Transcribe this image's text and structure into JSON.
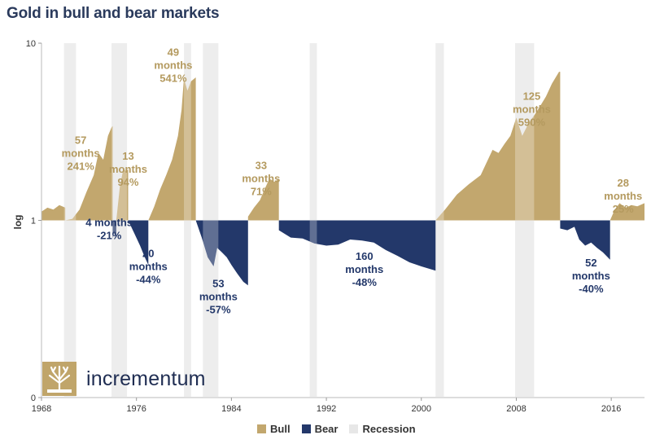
{
  "title": "Gold in bull and bear markets",
  "logo_text": "incrementum",
  "colors": {
    "bull": "#c2a76e",
    "bear": "#23386a",
    "recession": "#e7e7e7",
    "text_bull": "#b49a5f",
    "text_bear": "#23386a"
  },
  "legend": [
    {
      "label": "Bull",
      "color_key": "bull"
    },
    {
      "label": "Bear",
      "color_key": "bear"
    },
    {
      "label": "Recession",
      "color_key": "recession"
    }
  ],
  "chart_data": {
    "type": "area",
    "title": "Gold in bull and bear markets",
    "ylabel": "log",
    "yscale": "log",
    "ylim": [
      0.1,
      10
    ],
    "y_ticks": [
      {
        "value": 10,
        "label": "10"
      },
      {
        "value": 1,
        "label": "1"
      },
      {
        "value": 0.1,
        "label": "0"
      }
    ],
    "xlim": [
      1968,
      2018.8
    ],
    "x_ticks": [
      1968,
      1976,
      1984,
      1992,
      2000,
      2008,
      2016
    ],
    "baseline": 1,
    "recessions": [
      [
        1969.9,
        1970.9
      ],
      [
        1973.9,
        1975.2
      ],
      [
        1980.0,
        1980.6
      ],
      [
        1981.6,
        1982.9
      ],
      [
        1990.6,
        1991.2
      ],
      [
        2001.2,
        2001.9
      ],
      [
        2007.9,
        2009.5
      ]
    ],
    "series": [
      {
        "name": "Bull",
        "kind": "bull",
        "x": [
          1968.0,
          1968.5,
          1969.0,
          1969.5,
          1970.0
        ],
        "y": [
          1.12,
          1.18,
          1.15,
          1.22,
          1.18
        ]
      },
      {
        "name": "Bull",
        "kind": "bull",
        "x": [
          1970.0,
          1970.6,
          1971.2,
          1971.8,
          1972.4,
          1972.8,
          1973.2,
          1973.6,
          1973.9,
          1974.0
        ],
        "y": [
          1.0,
          1.02,
          1.15,
          1.45,
          1.8,
          2.4,
          2.2,
          3.0,
          3.35,
          3.41
        ]
      },
      {
        "name": "Bear",
        "kind": "bear",
        "x": [
          1974.0,
          1974.1,
          1974.2,
          1974.3
        ],
        "y": [
          0.79,
          0.85,
          0.82,
          0.8
        ]
      },
      {
        "name": "Bull",
        "kind": "bull",
        "x": [
          1974.3,
          1974.6,
          1974.9,
          1975.1,
          1975.3
        ],
        "y": [
          1.0,
          1.55,
          1.95,
          1.9,
          1.94
        ]
      },
      {
        "name": "Bear",
        "kind": "bear",
        "x": [
          1975.3,
          1975.8,
          1976.3,
          1976.7,
          1977.0
        ],
        "y": [
          1.0,
          0.85,
          0.72,
          0.62,
          0.56
        ]
      },
      {
        "name": "Bull",
        "kind": "bull",
        "x": [
          1977.0,
          1977.5,
          1978.0,
          1978.5,
          1979.0,
          1979.5,
          1979.8,
          1980.0,
          1980.3,
          1980.6,
          1981.0
        ],
        "y": [
          1.0,
          1.2,
          1.5,
          1.8,
          2.2,
          3.0,
          4.2,
          6.3,
          5.4,
          6.1,
          6.41
        ]
      },
      {
        "name": "Bear",
        "kind": "bear",
        "x": [
          1981.0,
          1981.5,
          1982.0,
          1982.5,
          1982.8,
          1983.2,
          1983.6,
          1984.0,
          1984.5,
          1985.0,
          1985.4
        ],
        "y": [
          1.0,
          0.8,
          0.62,
          0.55,
          0.7,
          0.66,
          0.62,
          0.56,
          0.5,
          0.45,
          0.43
        ]
      },
      {
        "name": "Bull",
        "kind": "bull",
        "x": [
          1985.4,
          1985.9,
          1986.4,
          1986.8,
          1987.2,
          1987.6,
          1988.0
        ],
        "y": [
          1.05,
          1.18,
          1.3,
          1.5,
          1.72,
          1.65,
          1.71
        ]
      },
      {
        "name": "Bear",
        "kind": "bear",
        "x": [
          1988.0,
          1989.0,
          1990.0,
          1991.0,
          1992.0,
          1993.0,
          1994.0,
          1995.0,
          1996.0,
          1997.0,
          1998.0,
          1999.0,
          2000.0,
          2001.2
        ],
        "y": [
          0.88,
          0.8,
          0.79,
          0.74,
          0.72,
          0.73,
          0.78,
          0.77,
          0.75,
          0.68,
          0.63,
          0.58,
          0.55,
          0.52
        ]
      },
      {
        "name": "Bull",
        "kind": "bull",
        "x": [
          2001.2,
          2002.0,
          2003.0,
          2004.0,
          2005.0,
          2006.0,
          2006.5,
          2007.0,
          2007.5,
          2008.0,
          2008.5,
          2009.0,
          2009.5,
          2010.0,
          2010.5,
          2011.0,
          2011.6,
          2011.7
        ],
        "y": [
          1.0,
          1.15,
          1.4,
          1.6,
          1.8,
          2.5,
          2.4,
          2.7,
          3.0,
          3.8,
          3.0,
          3.5,
          3.9,
          4.4,
          5.0,
          5.9,
          6.9,
          6.9
        ]
      },
      {
        "name": "Bear",
        "kind": "bear",
        "x": [
          2011.7,
          2012.3,
          2012.9,
          2013.3,
          2013.8,
          2014.3,
          2014.8,
          2015.3,
          2015.9
        ],
        "y": [
          0.9,
          0.88,
          0.92,
          0.78,
          0.72,
          0.75,
          0.7,
          0.66,
          0.6
        ]
      },
      {
        "name": "Bull",
        "kind": "bull",
        "x": [
          2015.9,
          2016.3,
          2016.7,
          2017.2,
          2017.7,
          2018.2,
          2018.8
        ],
        "y": [
          1.0,
          1.15,
          1.25,
          1.18,
          1.22,
          1.2,
          1.25
        ]
      }
    ],
    "annotations": [
      {
        "kind": "bull",
        "lines": [
          "57",
          "months",
          "241%"
        ],
        "x": 1971.3,
        "y": 2.7
      },
      {
        "kind": "bull",
        "lines": [
          "13",
          "months",
          "94%"
        ],
        "x": 1975.3,
        "y": 2.2
      },
      {
        "kind": "bull",
        "lines": [
          "49",
          "months",
          "541%"
        ],
        "x": 1979.1,
        "y": 8.5
      },
      {
        "kind": "bull",
        "lines": [
          "33",
          "months",
          "71%"
        ],
        "x": 1986.5,
        "y": 1.95
      },
      {
        "kind": "bull",
        "lines": [
          "125",
          "months",
          "590%"
        ],
        "x": 2009.3,
        "y": 4.8
      },
      {
        "kind": "bull",
        "lines": [
          "28",
          "months",
          "25%"
        ],
        "x": 2017.0,
        "y": 1.55
      },
      {
        "kind": "bear",
        "lines": [
          "4 months",
          "-21%"
        ],
        "x": 1973.7,
        "y": 0.93
      },
      {
        "kind": "bear",
        "lines": [
          "20",
          "months",
          "-44%"
        ],
        "x": 1977.0,
        "y": 0.62
      },
      {
        "kind": "bear",
        "lines": [
          "53",
          "months",
          "-57%"
        ],
        "x": 1982.9,
        "y": 0.42
      },
      {
        "kind": "bear",
        "lines": [
          "160",
          "months",
          "-48%"
        ],
        "x": 1995.2,
        "y": 0.6
      },
      {
        "kind": "bear",
        "lines": [
          "52",
          "months",
          "-40%"
        ],
        "x": 2014.3,
        "y": 0.55
      }
    ]
  }
}
